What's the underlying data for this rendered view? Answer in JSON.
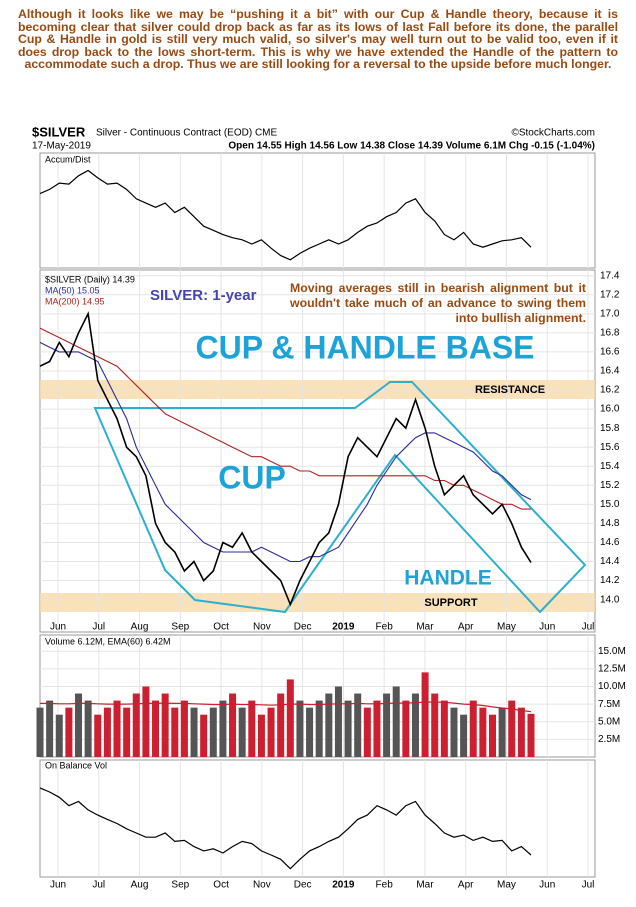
{
  "header": {
    "commentary": "Although it looks like we may be “pushing it a bit” with our Cup & Handle theory, because it is becoming clear that silver could drop back as far as its lows of last Fall before its done, the parallel Cup & Handle in gold is still very much valid, so silver's may well turn out to be valid too, even if it does drop back to the lows short-term. This is why we have extended the Handle of the pattern to accommodate such a drop. Thus we are still looking for a reversal to the upside before much longer.",
    "symbol": "$SILVER",
    "contract": "Silver - Continuous Contract (EOD) CME",
    "source": "©StockCharts.com",
    "date": "17-May-2019",
    "quote": "Open 14.55  High 14.56  Low 14.38  Close 14.39  Volume 6.1M  Chg -0.15 (-1.04%)"
  },
  "chart_data": {
    "type": "line",
    "legend_price": "$SILVER (Daily) 14.39",
    "xticks": [
      "Jun",
      "Jul",
      "Aug",
      "Sep",
      "Oct",
      "Nov",
      "Dec",
      "2019",
      "Feb",
      "Mar",
      "Apr",
      "May",
      "Jun",
      "Jul"
    ],
    "ylim": [
      13.66,
      17.46
    ],
    "yticks": [
      {
        "value": 14,
        "label": "14.0"
      },
      14.2,
      14.4,
      14.6,
      14.8,
      {
        "value": 15,
        "label": "15.0"
      },
      15.2,
      15.4,
      15.6,
      15.8,
      {
        "value": 16,
        "label": "16.0"
      },
      16.2,
      16.4,
      16.6,
      16.8,
      {
        "value": 17,
        "label": "17.0"
      },
      17.2,
      17.4
    ],
    "grid": true,
    "series": [
      {
        "name": "$SILVER",
        "color": "#000000",
        "values": [
          16.45,
          16.5,
          16.7,
          16.55,
          16.8,
          17.0,
          16.3,
          16.1,
          15.9,
          15.6,
          15.5,
          15.3,
          14.8,
          14.6,
          14.5,
          14.3,
          14.4,
          14.2,
          14.3,
          14.6,
          14.55,
          14.7,
          14.5,
          14.4,
          14.3,
          14.2,
          13.95,
          14.2,
          14.4,
          14.6,
          14.7,
          15.0,
          15.5,
          15.7,
          15.6,
          15.5,
          15.7,
          15.9,
          15.8,
          16.1,
          15.8,
          15.4,
          15.1,
          15.2,
          15.3,
          15.1,
          15.0,
          14.9,
          15.0,
          14.8,
          14.55,
          14.39
        ]
      },
      {
        "name": "MA(50) 15.05",
        "color": "#2b2b9a",
        "values": [
          16.7,
          16.65,
          16.6,
          16.6,
          16.6,
          16.55,
          16.5,
          16.3,
          16.1,
          15.9,
          15.6,
          15.4,
          15.2,
          15.0,
          14.9,
          14.8,
          14.7,
          14.6,
          14.55,
          14.5,
          14.5,
          14.5,
          14.5,
          14.55,
          14.5,
          14.45,
          14.4,
          14.4,
          14.45,
          14.45,
          14.5,
          14.55,
          14.7,
          14.85,
          15.0,
          15.2,
          15.35,
          15.5,
          15.6,
          15.7,
          15.75,
          15.75,
          15.7,
          15.65,
          15.6,
          15.55,
          15.45,
          15.35,
          15.3,
          15.2,
          15.1,
          15.05
        ]
      },
      {
        "name": "MA(200) 14.95",
        "color": "#b22222",
        "values": [
          16.85,
          16.8,
          16.75,
          16.7,
          16.65,
          16.6,
          16.55,
          16.5,
          16.45,
          16.35,
          16.25,
          16.15,
          16.05,
          15.95,
          15.9,
          15.85,
          15.8,
          15.75,
          15.7,
          15.65,
          15.6,
          15.55,
          15.5,
          15.5,
          15.45,
          15.4,
          15.4,
          15.35,
          15.35,
          15.3,
          15.3,
          15.3,
          15.3,
          15.3,
          15.3,
          15.3,
          15.3,
          15.3,
          15.3,
          15.3,
          15.3,
          15.25,
          15.25,
          15.2,
          15.2,
          15.15,
          15.1,
          15.05,
          15.0,
          15.0,
          14.95,
          14.95
        ]
      }
    ],
    "annotations": {
      "subtitle": "SILVER: 1-year",
      "ma_note": "Moving averages still in bearish alignment but it wouldn't take much of an advance to swing them into bullish alignment.",
      "pattern": "CUP & HANDLE BASE",
      "cup": "CUP",
      "handle": "HANDLE",
      "resistance": "RESISTANCE",
      "support": "SUPPORT"
    },
    "accum_dist": {
      "name": "Accum/Dist",
      "color": "#000000",
      "ylim": [
        0,
        100
      ],
      "values": [
        68,
        72,
        78,
        77,
        85,
        90,
        83,
        77,
        78,
        72,
        63,
        59,
        55,
        59,
        50,
        55,
        46,
        37,
        33,
        29,
        26,
        24,
        20,
        24,
        16,
        9,
        5,
        11,
        16,
        20,
        24,
        20,
        24,
        31,
        37,
        40,
        46,
        50,
        59,
        63,
        50,
        42,
        29,
        24,
        31,
        20,
        17,
        20,
        23,
        24,
        26,
        17
      ]
    },
    "volume": {
      "legend": "Volume 6.12M, EMA(60) 6.42M",
      "up_color": "#555555",
      "down_color": "#cc1f2f",
      "ema_color": "#cc1f2f",
      "ylim": [
        0,
        17.3
      ],
      "yticks": [
        {
          "value": 2.5,
          "label": "2.5M"
        },
        {
          "value": 5,
          "label": "5.0M"
        },
        {
          "value": 7.5,
          "label": "7.5M"
        },
        {
          "value": 10,
          "label": "10.0M"
        },
        {
          "value": 12.5,
          "label": "12.5M"
        },
        {
          "value": 15,
          "label": "15.0M"
        }
      ],
      "values": [
        7,
        8,
        6,
        7,
        9,
        8,
        6,
        7,
        8,
        7,
        9,
        10,
        8,
        9,
        7,
        8,
        7,
        6,
        7,
        8,
        9,
        7,
        8,
        6,
        7,
        9,
        11,
        8,
        7,
        8,
        9,
        10,
        8,
        9,
        7,
        8,
        9,
        10,
        8,
        9,
        12,
        9,
        8,
        7,
        6,
        8,
        7,
        6,
        7,
        8,
        7,
        6.12
      ],
      "ema": [
        7.6,
        7.6,
        7.55,
        7.55,
        7.6,
        7.6,
        7.55,
        7.5,
        7.5,
        7.5,
        7.55,
        7.6,
        7.6,
        7.65,
        7.6,
        7.6,
        7.55,
        7.5,
        7.45,
        7.45,
        7.5,
        7.45,
        7.45,
        7.4,
        7.35,
        7.4,
        7.5,
        7.5,
        7.45,
        7.45,
        7.5,
        7.55,
        7.55,
        7.6,
        7.55,
        7.55,
        7.6,
        7.65,
        7.65,
        7.7,
        7.8,
        7.8,
        7.75,
        7.65,
        7.5,
        7.45,
        7.3,
        7.1,
        6.95,
        6.8,
        6.6,
        6.42
      ]
    },
    "obv": {
      "name": "On Balance Vol",
      "color": "#000000",
      "ylim": [
        0,
        100
      ],
      "values": [
        83,
        79,
        74,
        66,
        70,
        62,
        57,
        53,
        49,
        44,
        40,
        36,
        36,
        40,
        32,
        33,
        27,
        23,
        25,
        21,
        27,
        32,
        30,
        23,
        19,
        15,
        6,
        15,
        23,
        27,
        32,
        36,
        44,
        53,
        57,
        66,
        62,
        57,
        66,
        70,
        57,
        49,
        40,
        36,
        38,
        33,
        36,
        32,
        33,
        23,
        27,
        19
      ]
    }
  }
}
